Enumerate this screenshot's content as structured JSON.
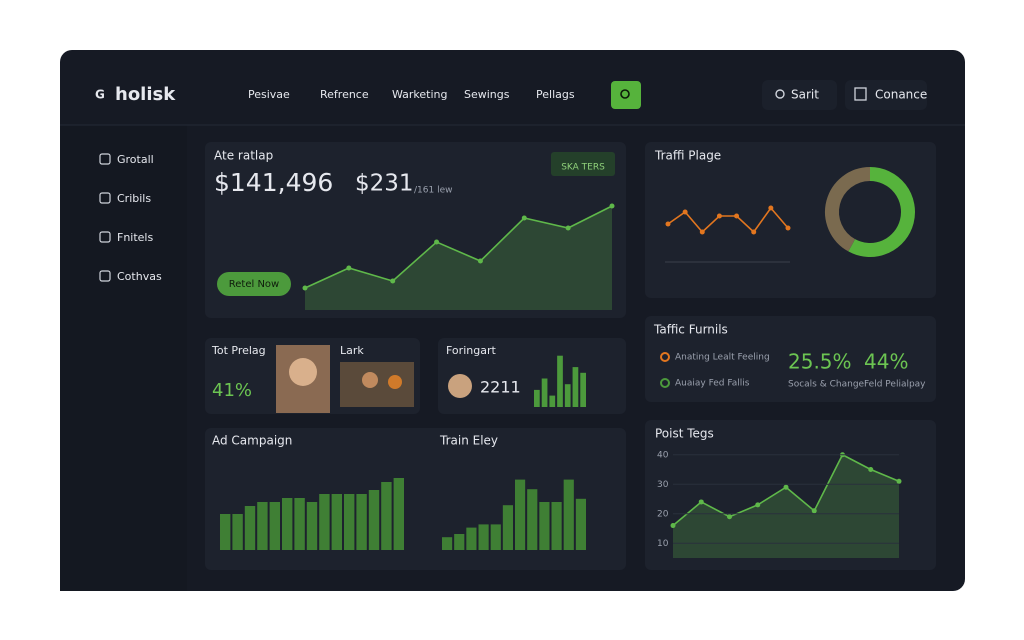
{
  "brand": "holisk",
  "nav": [
    "Pesivae",
    "Refrence",
    "Warketing",
    "Sewings",
    "Pellags"
  ],
  "search": "Sarit",
  "contact": "Conance",
  "sidebar": [
    "Grotall",
    "Cribils",
    "Fnitels",
    "Cothvas"
  ],
  "main": {
    "title": "Ate ratlap",
    "value1": "$141,496",
    "value2": "$231",
    "value2_note": "/161 lew",
    "badge": "SKA TERS",
    "button": "Retel Now",
    "line": {
      "values": [
        22,
        42,
        29,
        68,
        49,
        92,
        82,
        104
      ],
      "ylim": [
        0,
        110
      ],
      "color": "#5fb84a"
    }
  },
  "traffic": {
    "title": "Traffi Plage",
    "line": {
      "values": [
        4,
        7,
        2,
        6,
        6,
        2,
        8,
        3
      ],
      "ylim": [
        0,
        10
      ],
      "color": "#e2761f"
    },
    "donut": {
      "values": [
        58,
        42
      ],
      "colors": [
        "#56b33c",
        "#7a6a4f"
      ]
    }
  },
  "funnels": {
    "title": "Taffic Furnils",
    "legend": [
      {
        "name": "Anating Lealt Feeling",
        "color": "#e2761f"
      },
      {
        "name": "Auaiay Fed Fallis",
        "color": "#4c9a3c"
      }
    ],
    "stats": [
      {
        "value": "25.5%",
        "label": "Socals & Change"
      },
      {
        "value": "44%",
        "label": "Feld Pelialpay"
      }
    ]
  },
  "prelag": {
    "title": "Tot Prelag",
    "value": "41%",
    "second": "Lark"
  },
  "foringart": {
    "title": "Foringart",
    "value": "2211",
    "bars": {
      "values": [
        3,
        5,
        2,
        9,
        4,
        7,
        6
      ],
      "ylim": [
        0,
        10
      ],
      "color": "#4c9a3c"
    }
  },
  "campaign": {
    "title": "Ad Campaign",
    "bars": {
      "values": [
        9,
        9,
        11,
        12,
        12,
        13,
        13,
        12,
        14,
        14,
        14,
        14,
        15,
        17,
        18
      ],
      "ylim": [
        0,
        20
      ],
      "color": "#3f7f34"
    }
  },
  "train": {
    "title": "Train Eley",
    "bars": {
      "values": [
        4,
        5,
        7,
        8,
        8,
        14,
        22,
        19,
        15,
        15,
        22,
        16
      ],
      "ylim": [
        0,
        25
      ],
      "color": "#3f7f34"
    }
  },
  "points": {
    "title": "Poist Tegs",
    "line": {
      "values": [
        16,
        24,
        19,
        23,
        29,
        21,
        40,
        35,
        31
      ],
      "ylim": [
        5,
        45
      ],
      "yticks": [
        10,
        20,
        30,
        40
      ],
      "color": "#5fb84a"
    }
  }
}
